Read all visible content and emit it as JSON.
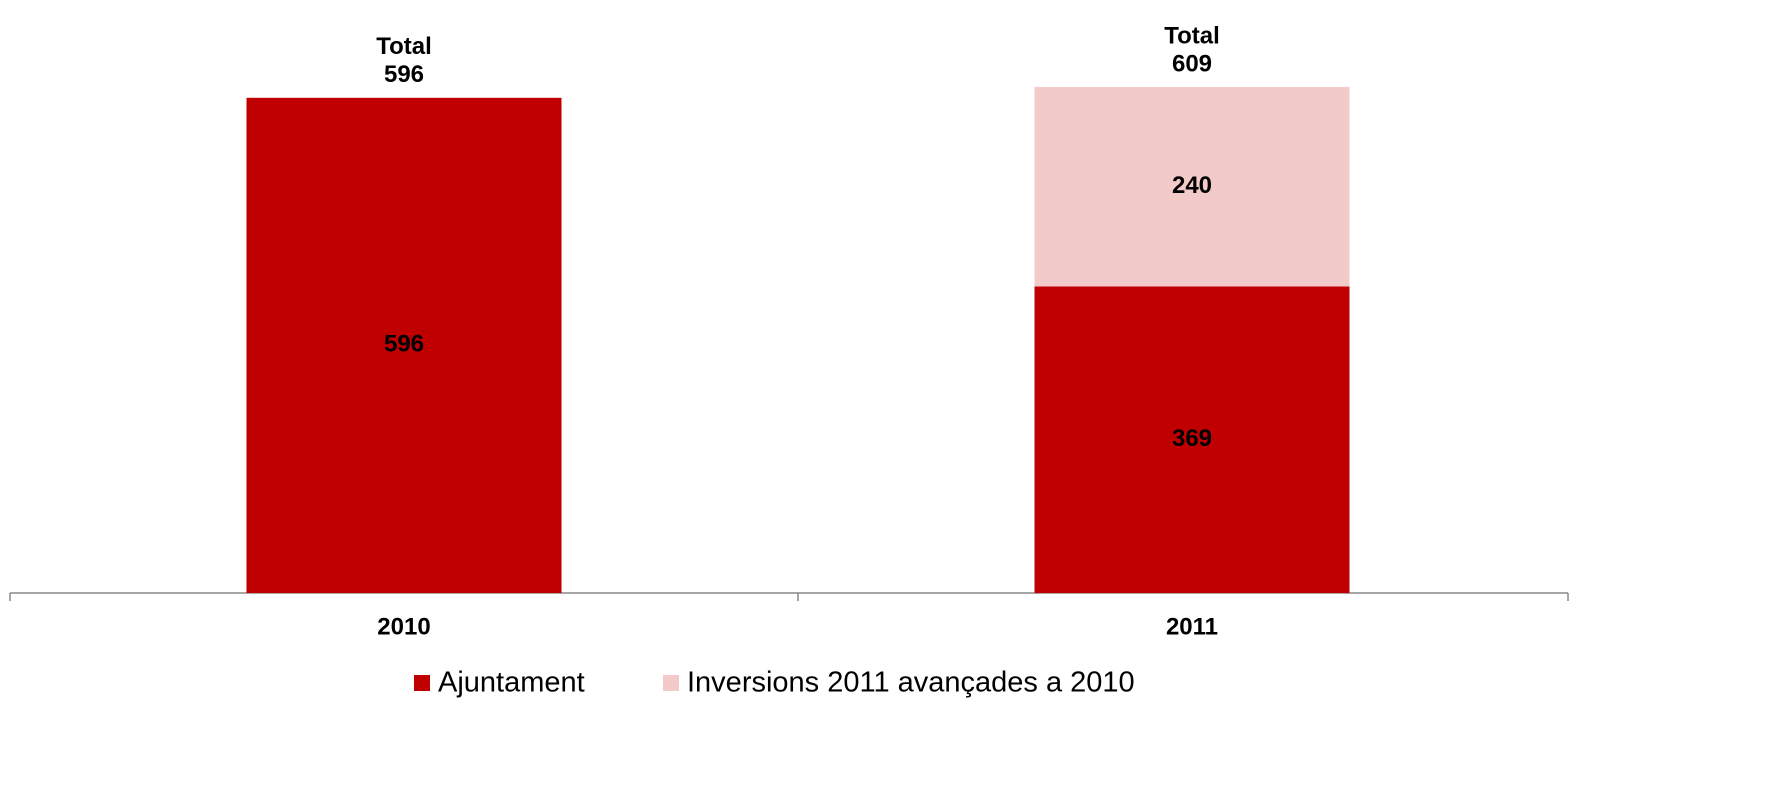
{
  "chart_data": {
    "type": "stacked_bar",
    "categories": [
      "2010",
      "2011"
    ],
    "series": [
      {
        "name": "Ajuntament",
        "color": "#c00000",
        "values": [
          596,
          369
        ]
      },
      {
        "name": "Inversions 2011 avançades a 2010",
        "color": "#f2cbc8",
        "values": [
          null,
          240
        ]
      }
    ],
    "total_label": "Total",
    "totals": [
      596,
      609
    ],
    "legend": "bottom"
  }
}
